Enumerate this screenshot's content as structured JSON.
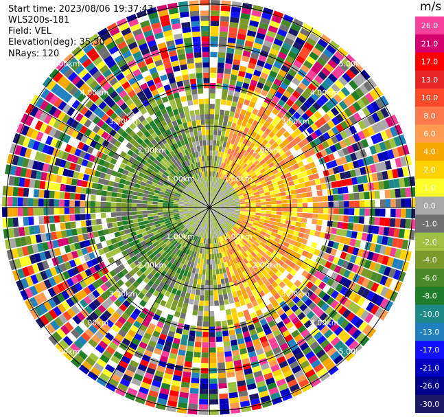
{
  "header": {
    "start_time": "Start time: 2023/08/06 19:37:43",
    "instrument": "WLS200s-181",
    "field": "Field: VEL",
    "elevation": "Elevation(deg): 35.30",
    "nrays": "NRays: 120"
  },
  "colorbar": {
    "unit": "m/s",
    "ticks": [
      "26.0",
      "21.0",
      "17.0",
      "13.0",
      "10.0",
      "8.0",
      "6.0",
      "4.0",
      "2.0",
      "1.0",
      "0.0",
      "-1.0",
      "-2.0",
      "-4.0",
      "-6.0",
      "-8.0",
      "-10.0",
      "-13.0",
      "-17.0",
      "-21.0",
      "-26.0",
      "-30.0"
    ],
    "colors": [
      "#f9409a",
      "#d40070",
      "#ff0000",
      "#e8262a",
      "#ff4a2a",
      "#ff7a4a",
      "#ff9a50",
      "#f6a800",
      "#ffd200",
      "#ffff2a",
      "#a8a8a8",
      "#707070",
      "#a0c040",
      "#7a9a2a",
      "#4a8a2a",
      "#1e7e2a",
      "#1e8a8a",
      "#2080c0",
      "#1010ff",
      "#0000c0",
      "#00008a",
      "#1a1a66"
    ]
  },
  "chart_data": {
    "type": "heatmap",
    "projection": "polar PPI",
    "field": "VEL",
    "units": "m/s",
    "nrays": 120,
    "range_rings_km": [
      1.0,
      2.0,
      3.0,
      4.0,
      5.0
    ],
    "ring_labels": [
      "1.00km",
      "2.00km",
      "3.00km",
      "4.00km",
      "5.00km"
    ],
    "color_scale": [
      -30,
      26
    ],
    "pattern": "near-field: negative (green) toward west, positive (yellow/orange) toward east; far-field beyond ~4 km: noise with random colors"
  }
}
